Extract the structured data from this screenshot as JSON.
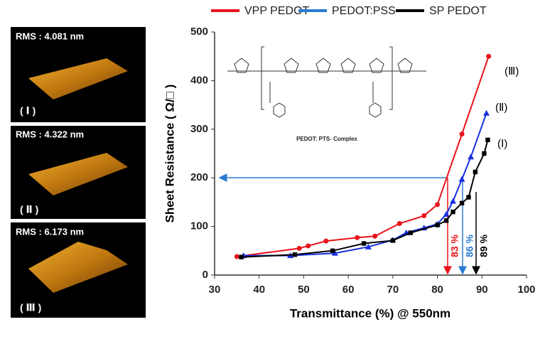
{
  "panels": [
    {
      "rms": "RMS : 4.081 nm",
      "label": "( Ⅰ )"
    },
    {
      "rms": "RMS : 4.322 nm",
      "label": "( Ⅱ )"
    },
    {
      "rms": "RMS : 6.173 nm",
      "label": "( Ⅲ )"
    }
  ],
  "chart_data": {
    "type": "line",
    "x_label": "Transmittance (%) @ 550nm",
    "y_label": "Sheet Resistance ( Ω/□ )",
    "inset_caption": "PEDOT: PTS- Complex",
    "xlim": [
      30,
      100
    ],
    "xticks": [
      30,
      40,
      50,
      60,
      70,
      80,
      90,
      100
    ],
    "ylim": [
      0,
      500
    ],
    "yticks": [
      0,
      100,
      200,
      300,
      400,
      500
    ],
    "series": [
      {
        "name": "VPP PEDOT",
        "color": "#e8141b",
        "marker": "circle",
        "x": [
          35,
          49,
          51,
          55,
          62,
          66,
          71.5,
          77,
          80,
          85.5,
          91.5
        ],
        "values": [
          38,
          55,
          60,
          70,
          77,
          80,
          106,
          122,
          145,
          290,
          450
        ]
      },
      {
        "name": "PEDOT:PSS",
        "color": "#1830e0",
        "marker": "triangle",
        "x": [
          36.5,
          47,
          57,
          64.5,
          70,
          73,
          77,
          80,
          82,
          83.5,
          85.5,
          87.5,
          91
        ],
        "values": [
          40,
          40,
          45,
          58,
          72,
          87,
          97,
          105,
          125,
          152,
          197,
          243,
          333
        ]
      },
      {
        "name": "SP PEDOT",
        "color": "#000000",
        "marker": "square",
        "x": [
          36,
          48,
          56.5,
          63.5,
          70,
          74,
          80,
          82,
          83.5,
          85.5,
          87,
          88.5,
          90.5,
          91.3
        ],
        "values": [
          37,
          42,
          50,
          65,
          71,
          87,
          103,
          112,
          130,
          148,
          160,
          212,
          250,
          278
        ]
      }
    ],
    "legend_colors": [
      "#e8141b",
      "#2a7bd0",
      "#000000"
    ],
    "annotations": [
      {
        "text": "(Ⅲ)",
        "color": "#000000"
      },
      {
        "text": "(Ⅱ)",
        "color": "#000000"
      },
      {
        "text": "(Ⅰ)",
        "color": "#000000"
      },
      {
        "text": "83 %",
        "color": "#e8141b"
      },
      {
        "text": "86 %",
        "color": "#2a7bd0"
      },
      {
        "text": "89 %",
        "color": "#000000"
      }
    ]
  }
}
